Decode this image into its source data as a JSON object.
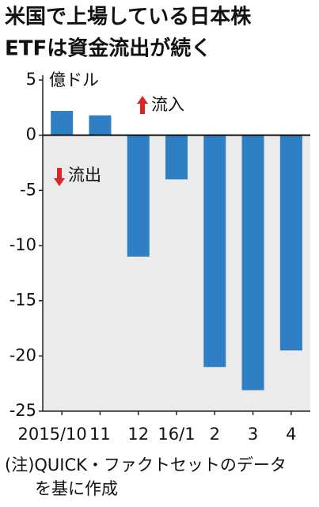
{
  "chart_data": {
    "type": "bar",
    "title": [
      "米国で上場している日本株",
      "ETFは資金流出が続く"
    ],
    "unit_label": "億ドル",
    "inflow_label": "流入",
    "outflow_label": "流出",
    "categories": [
      "2015/10",
      "11",
      "12",
      "16/1",
      "2",
      "3",
      "4"
    ],
    "values": [
      2.2,
      1.8,
      -11,
      -4,
      -21,
      -23.1,
      -19.5
    ],
    "color": "#2f7fc4",
    "ylim": [
      -25,
      5
    ],
    "yticks": [
      5,
      0,
      -5,
      -10,
      -15,
      -20,
      -25
    ],
    "note": [
      "(注)QUICK・ファクトセットのデータ",
      "を基に作成"
    ]
  }
}
